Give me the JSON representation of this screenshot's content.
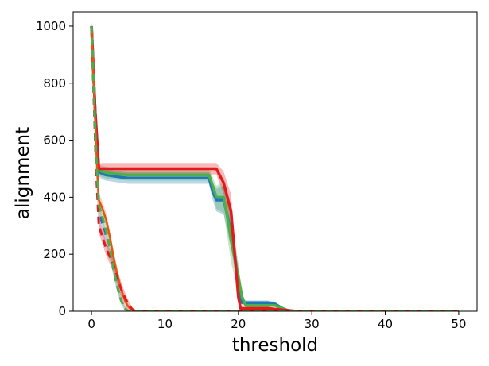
{
  "chart_data": {
    "type": "line",
    "title": "",
    "xlabel": "threshold",
    "ylabel": "alignment",
    "xlim": [
      -2.5,
      52.5
    ],
    "ylim": [
      0,
      1050
    ],
    "xticks": [
      0,
      10,
      20,
      30,
      40,
      50
    ],
    "yticks": [
      0,
      200,
      400,
      600,
      800,
      1000
    ],
    "grid": false,
    "legend": "none",
    "colors": {
      "red": "#e31a1c",
      "blue": "#1f77b4",
      "green": "#4daf4a",
      "orange": "#e6550d",
      "pink": "#f4a6b8"
    },
    "series": [
      {
        "style": "solid",
        "color": "#1f77b4",
        "width": 3.5,
        "band_opacity": 0.3,
        "x": [
          0,
          0.5,
          1,
          1.5,
          2,
          3,
          4,
          5,
          8,
          12,
          16,
          16.5,
          17,
          18,
          19,
          20,
          20.5,
          21,
          22,
          23,
          24,
          25,
          26,
          27,
          30,
          40,
          50
        ],
        "values": [
          1000,
          700,
          490,
          482,
          478,
          474,
          470,
          467,
          467,
          467,
          467,
          420,
          390,
          390,
          280,
          110,
          30,
          30,
          30,
          30,
          30,
          25,
          10,
          0,
          0,
          0,
          0
        ],
        "band": [
          15,
          15,
          18,
          20,
          20,
          20,
          20,
          20,
          20,
          20,
          20,
          30,
          40,
          50,
          60,
          40,
          10,
          8,
          8,
          8,
          8,
          8,
          6,
          0,
          0,
          0,
          0
        ]
      },
      {
        "style": "solid",
        "color": "#4daf4a",
        "width": 3.5,
        "band_opacity": 0.3,
        "x": [
          0,
          0.5,
          1,
          1.5,
          2,
          3,
          4,
          5,
          8,
          12,
          16,
          16.5,
          17,
          18,
          18.5,
          19,
          20,
          20.5,
          21,
          22,
          23,
          24,
          25,
          26,
          27,
          30,
          40,
          50
        ],
        "values": [
          1000,
          700,
          495,
          490,
          486,
          482,
          480,
          478,
          478,
          478,
          478,
          440,
          400,
          400,
          330,
          250,
          120,
          50,
          20,
          20,
          20,
          20,
          20,
          10,
          0,
          0,
          0,
          0
        ],
        "band": [
          15,
          15,
          18,
          20,
          20,
          20,
          20,
          20,
          20,
          20,
          20,
          30,
          40,
          55,
          70,
          80,
          50,
          20,
          5,
          5,
          5,
          5,
          5,
          4,
          0,
          0,
          0,
          0
        ]
      },
      {
        "style": "solid",
        "color": "#e31a1c",
        "width": 3.5,
        "band_opacity": 0.3,
        "x": [
          0,
          0.5,
          1,
          1.5,
          2,
          3,
          4,
          5,
          8,
          12,
          16,
          17,
          18,
          19,
          19.5,
          20,
          20.3,
          21,
          22,
          24,
          26,
          28,
          30,
          40,
          50
        ],
        "values": [
          1000,
          700,
          500,
          500,
          500,
          500,
          500,
          500,
          500,
          500,
          500,
          500,
          450,
          350,
          200,
          50,
          10,
          10,
          10,
          10,
          5,
          0,
          0,
          0,
          0
        ],
        "band": [
          15,
          15,
          18,
          20,
          20,
          20,
          20,
          20,
          20,
          20,
          20,
          20,
          40,
          60,
          40,
          15,
          5,
          4,
          4,
          4,
          3,
          0,
          0,
          0,
          0
        ]
      },
      {
        "style": "solid",
        "color": "#e6550d",
        "width": 2.5,
        "band_opacity": 0.25,
        "x": [
          0,
          0.3,
          0.6,
          1,
          1.5,
          2,
          2.5,
          3,
          3.5,
          4,
          4.5,
          5,
          5.5,
          6,
          8,
          20,
          30,
          40,
          50
        ],
        "values": [
          1000,
          800,
          600,
          390,
          360,
          320,
          260,
          190,
          130,
          80,
          40,
          15,
          3,
          0,
          0,
          0,
          0,
          0,
          0
        ],
        "band": [
          10,
          20,
          25,
          25,
          25,
          25,
          25,
          25,
          25,
          20,
          15,
          10,
          5,
          0,
          0,
          0,
          0,
          0,
          0
        ]
      },
      {
        "style": "dashed",
        "color": "#1f77b4",
        "width": 3.5,
        "band_opacity": 0.25,
        "x": [
          0,
          0.3,
          0.6,
          1,
          1.5,
          2,
          2.5,
          3,
          3.5,
          4,
          4.5,
          5,
          5.5,
          6,
          8,
          20,
          30,
          40,
          50
        ],
        "values": [
          1000,
          780,
          560,
          360,
          300,
          260,
          210,
          150,
          90,
          45,
          15,
          3,
          0,
          0,
          0,
          0,
          0,
          0,
          0
        ],
        "band": [
          10,
          20,
          25,
          25,
          25,
          25,
          25,
          25,
          20,
          15,
          8,
          3,
          0,
          0,
          0,
          0,
          0,
          0,
          0
        ]
      },
      {
        "style": "dashed",
        "color": "#f4a6b8",
        "width": 3,
        "band_opacity": 0.25,
        "x": [
          0,
          0.3,
          0.6,
          1,
          1.5,
          2,
          2.5,
          3,
          3.5,
          4,
          4.5,
          5,
          5.5,
          6,
          8,
          20,
          30,
          40,
          50
        ],
        "values": [
          1000,
          770,
          540,
          320,
          280,
          240,
          200,
          150,
          100,
          55,
          20,
          5,
          0,
          0,
          0,
          0,
          0,
          0,
          0
        ],
        "band": [
          10,
          20,
          25,
          25,
          25,
          25,
          25,
          25,
          20,
          15,
          8,
          3,
          0,
          0,
          0,
          0,
          0,
          0,
          0
        ]
      },
      {
        "style": "dashed",
        "color": "#e31a1c",
        "width": 3,
        "band_opacity": 0.3,
        "x": [
          0,
          0.3,
          0.6,
          1,
          1.5,
          2,
          2.5,
          3,
          3.5,
          4,
          4.5,
          5,
          5.5,
          6,
          8,
          20,
          30,
          40,
          50
        ],
        "values": [
          1000,
          760,
          520,
          300,
          260,
          220,
          190,
          160,
          120,
          80,
          50,
          25,
          8,
          0,
          0,
          0,
          0,
          0,
          0
        ],
        "band": [
          10,
          20,
          25,
          25,
          25,
          25,
          25,
          25,
          25,
          25,
          20,
          15,
          8,
          0,
          0,
          0,
          0,
          0,
          0
        ]
      },
      {
        "style": "dashed",
        "color": "#4daf4a",
        "width": 3,
        "band_opacity": 0.25,
        "x": [
          0,
          0.3,
          0.6,
          1,
          1.5,
          2,
          2.5,
          3,
          3.5,
          4,
          4.5,
          5,
          5.5,
          6,
          8,
          20,
          30,
          40,
          50
        ],
        "values": [
          1000,
          780,
          560,
          370,
          330,
          280,
          220,
          150,
          90,
          40,
          10,
          0,
          0,
          0,
          0,
          0,
          0,
          0,
          0
        ],
        "band": [
          10,
          20,
          25,
          25,
          25,
          25,
          25,
          25,
          20,
          15,
          8,
          0,
          0,
          0,
          0,
          0,
          0,
          0,
          0
        ]
      }
    ]
  }
}
